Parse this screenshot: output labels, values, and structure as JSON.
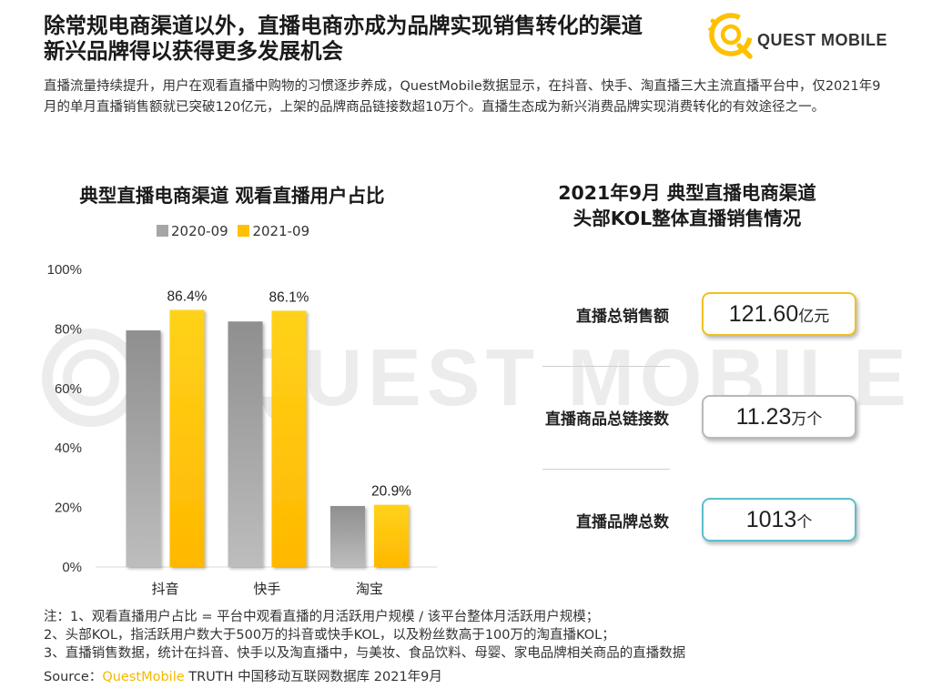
{
  "header": {
    "headline_line1": "除常规电商渠道以外，直播电商亦成为品牌实现销售转化的渠道",
    "headline_line2": "新兴品牌得以获得更多发展机会",
    "logo_text": "QUEST MOBILE"
  },
  "intro": "直播流量持续提升，用户在观看直播中购物的习惯逐步养成，QuestMobile数据显示，在抖音、快手、淘直播三大主流直播平台中，仅2021年9月的单月直播销售额就已突破120亿元，上架的品牌商品链接数超10万个。直播生态成为新兴消费品牌实现消费转化的有效途径之一。",
  "chart_data": {
    "type": "bar",
    "title": "典型直播电商渠道 观看直播用户占比",
    "categories": [
      "抖音",
      "快手",
      "淘宝"
    ],
    "series": [
      {
        "name": "2020-09",
        "values": [
          79.5,
          82.5,
          20.5
        ],
        "color": "#a6a6a6",
        "labels": [
          "",
          "",
          ""
        ]
      },
      {
        "name": "2021-09",
        "values": [
          86.4,
          86.1,
          20.9
        ],
        "color": "#ffc000",
        "labels": [
          "86.4%",
          "86.1%",
          "20.9%"
        ]
      }
    ],
    "ylim": [
      0,
      100
    ],
    "yticks": [
      "0%",
      "20%",
      "40%",
      "60%",
      "80%",
      "100%"
    ],
    "legend_position": "top",
    "grid": false
  },
  "right_panel": {
    "title_line1": "2021年9月 典型直播电商渠道",
    "title_line2": "头部KOL整体直播销售情况",
    "metrics": [
      {
        "label": "直播总销售额",
        "value": "121.60",
        "unit": "亿元",
        "border": "#f0c020"
      },
      {
        "label": "直播商品总链接数",
        "value": "11.23",
        "unit": "万个",
        "border": "#b9b9b9"
      },
      {
        "label": "直播品牌总数",
        "value": "1013",
        "unit": "个",
        "border": "#5bbfcc"
      }
    ]
  },
  "notes": {
    "line1": "注：1、观看直播用户占比 = 平台中观看直播的月活跃用户规模 / 该平台整体月活跃用户规模；",
    "line2": "2、头部KOL，指活跃用户数大于500万的抖音或快手KOL，以及粉丝数高于100万的淘直播KOL；",
    "line3": "3、直播销售数据，统计在抖音、快手以及淘直播中，与美妆、食品饮料、母婴、家电品牌相关商品的直播数据"
  },
  "source": {
    "prefix": "Source：",
    "brand": "QuestMobile",
    "rest": " TRUTH 中国移动互联网数据库 2021年9月"
  },
  "colors": {
    "accent": "#ffc000",
    "gray_bar": "#a6a6a6",
    "teal_border": "#5bbfcc"
  },
  "icons": {
    "logo": "questmobile-logo-icon",
    "watermark": "questmobile-watermark-icon"
  }
}
